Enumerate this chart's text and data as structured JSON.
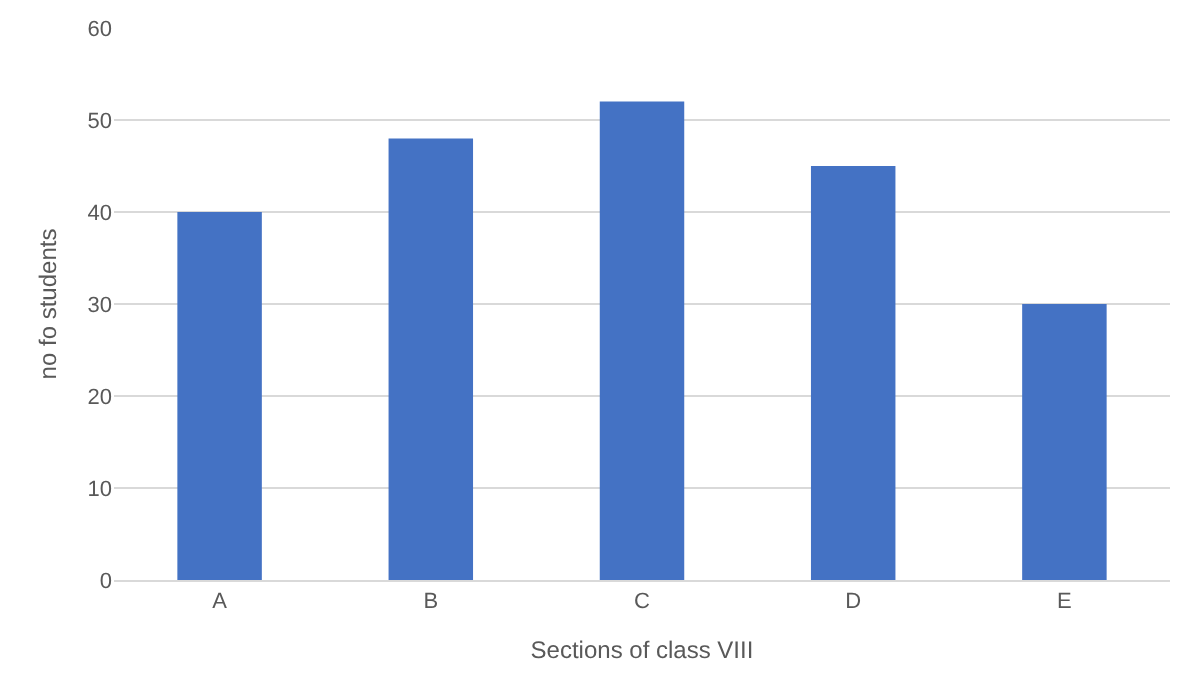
{
  "chart_data": {
    "type": "bar",
    "xlabel": "Sections of class VIII",
    "ylabel": "no fo students",
    "categories": [
      "A",
      "B",
      "C",
      "D",
      "E"
    ],
    "values": [
      40,
      48,
      52,
      45,
      30
    ],
    "color": "#4472c4",
    "ylim": [
      0,
      60
    ],
    "yticks": [
      0,
      10,
      20,
      30,
      40,
      50,
      60
    ],
    "grid": "y",
    "legend": false
  }
}
